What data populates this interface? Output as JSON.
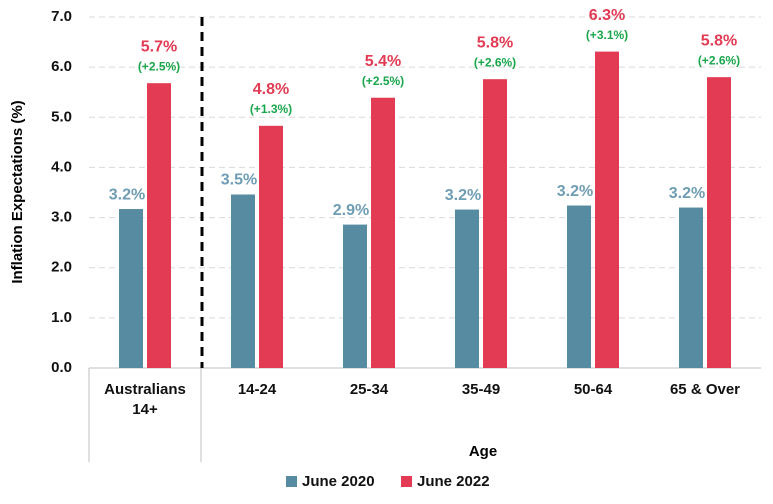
{
  "chart_data": {
    "type": "bar",
    "y_label": "Inflation Expectations (%)",
    "x_label": "Age",
    "categories": [
      "Australians 14+",
      "14-24",
      "25-34",
      "35-49",
      "50-64",
      "65 & Over"
    ],
    "series": [
      {
        "name": "June 2020",
        "color": "#568ba1",
        "label_color": "#6f9db4",
        "values": [
          3.17,
          3.46,
          2.86,
          3.16,
          3.24,
          3.2
        ],
        "value_labels": [
          "3.2%",
          "3.5%",
          "2.9%",
          "3.2%",
          "3.2%",
          "3.2%"
        ]
      },
      {
        "name": "June 2022",
        "color": "#e23b53",
        "label_color": "#e23b53",
        "values": [
          5.68,
          4.83,
          5.39,
          5.76,
          6.31,
          5.8
        ],
        "value_labels": [
          "5.7%",
          "4.8%",
          "5.4%",
          "5.8%",
          "6.3%",
          "5.8%"
        ],
        "change_labels": [
          "(+2.5%)",
          "(+1.3%)",
          "(+2.5%)",
          "(+2.6%)",
          "(+3.1%)",
          "(+2.6%)"
        ],
        "change_color": "#1aa64b"
      }
    ],
    "ylim": [
      0,
      7
    ],
    "yticks": [
      {
        "value": 0,
        "label": "0.0"
      },
      {
        "value": 1,
        "label": "1.0"
      },
      {
        "value": 2,
        "label": "2.0"
      },
      {
        "value": 3,
        "label": "3.0"
      },
      {
        "value": 4,
        "label": "4.0"
      },
      {
        "value": 5,
        "label": "5.0"
      },
      {
        "value": 6,
        "label": "6.0"
      },
      {
        "value": 7,
        "label": "7.0"
      }
    ],
    "grid": true
  }
}
